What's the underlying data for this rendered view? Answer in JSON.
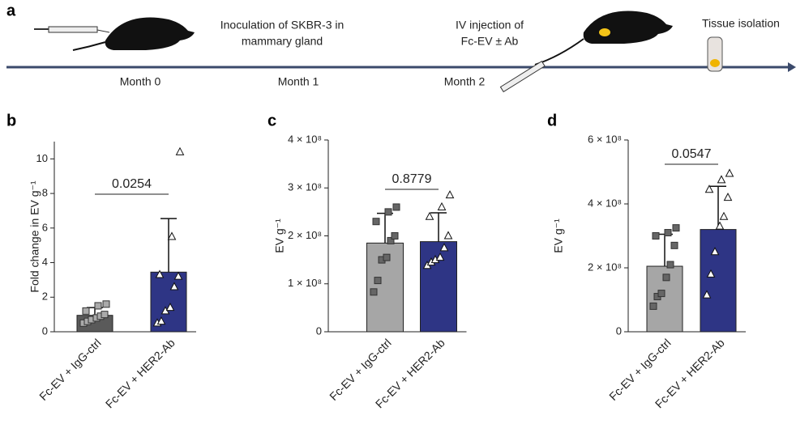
{
  "timeline": {
    "label": "a",
    "steps": [
      [
        "Inoculation of SKBR-3 in",
        "mammary gland"
      ],
      [
        "IV injection of",
        "Fc-EV ± Ab"
      ],
      [
        "Tissue isolation"
      ]
    ],
    "months": [
      "Month 0",
      "Month 1",
      "Month 2"
    ]
  },
  "chart_data": [
    {
      "type": "bar",
      "label": "b",
      "ylabel": "Fold change in EV g⁻¹",
      "categories": [
        "Fc-EV + IgG-ctrl",
        "Fc-EV + HER2-Ab"
      ],
      "values": [
        0.95,
        3.45
      ],
      "errors": [
        0.45,
        3.1
      ],
      "colors": [
        "#5a5a5a",
        "#2e3585"
      ],
      "points": [
        [
          0.5,
          0.6,
          0.7,
          0.8,
          0.9,
          1.0,
          1.2,
          1.5,
          1.6
        ],
        [
          0.5,
          0.6,
          1.2,
          1.4,
          2.6,
          3.2,
          3.3,
          5.5,
          10.4
        ]
      ],
      "annotation": "0.0254",
      "ylim": [
        0,
        11
      ],
      "yticks": [
        0,
        2,
        4,
        6,
        8,
        10
      ]
    },
    {
      "type": "bar",
      "label": "c",
      "ylabel": "EV g⁻¹",
      "categories": [
        "Fc-EV + IgG-ctrl",
        "Fc-EV + HER2-Ab"
      ],
      "values": [
        185000000,
        188000000
      ],
      "errors": [
        62000000,
        60000000
      ],
      "colors": [
        "#a6a6a6",
        "#2e3585"
      ],
      "points": [
        [
          83000000,
          107000000,
          150000000,
          155000000,
          190000000,
          200000000,
          230000000,
          250000000,
          260000000
        ],
        [
          138000000,
          145000000,
          150000000,
          155000000,
          175000000,
          200000000,
          240000000,
          260000000,
          285000000
        ]
      ],
      "annotation": "0.8779",
      "ylim": [
        0,
        400000000
      ],
      "yticks": [
        0,
        {
          "value": 100000000,
          "label": "1 × 10⁸"
        },
        {
          "value": 200000000,
          "label": "2 × 10⁸"
        },
        {
          "value": 300000000,
          "label": "3 × 10⁸"
        },
        {
          "value": 400000000,
          "label": "4 × 10⁸"
        }
      ]
    },
    {
      "type": "bar",
      "label": "d",
      "ylabel": "EV g⁻¹",
      "categories": [
        "Fc-EV + IgG-ctrl",
        "Fc-EV + HER2-Ab"
      ],
      "values": [
        205000000,
        320000000
      ],
      "errors": [
        100000000,
        135000000
      ],
      "colors": [
        "#a6a6a6",
        "#2e3585"
      ],
      "points": [
        [
          80000000,
          110000000,
          120000000,
          170000000,
          210000000,
          270000000,
          300000000,
          310000000,
          325000000
        ],
        [
          115000000,
          180000000,
          250000000,
          330000000,
          360000000,
          420000000,
          445000000,
          475000000,
          495000000
        ]
      ],
      "annotation": "0.0547",
      "ylim": [
        0,
        600000000
      ],
      "yticks": [
        0,
        {
          "value": 200000000,
          "label": "2 × 10⁸"
        },
        {
          "value": 400000000,
          "label": "4 × 10⁸"
        },
        {
          "value": 600000000,
          "label": "6 × 10⁸"
        }
      ]
    }
  ]
}
